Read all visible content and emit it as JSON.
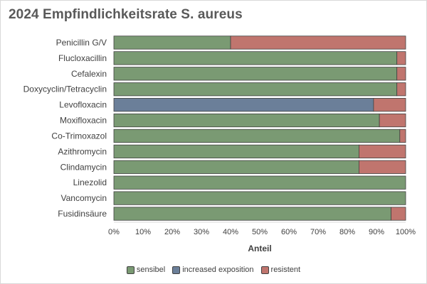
{
  "chart_data": {
    "type": "bar",
    "orientation": "horizontal",
    "stacked": true,
    "title": "2024 Empfindlichkeitsrate S. aureus",
    "xlabel": "Anteil",
    "ylabel": "",
    "xlim": [
      0,
      100
    ],
    "x_ticks": [
      "0%",
      "10%",
      "20%",
      "30%",
      "40%",
      "50%",
      "60%",
      "70%",
      "80%",
      "90%",
      "100%"
    ],
    "grid": false,
    "legend_position": "bottom",
    "categories": [
      "Penicillin G/V",
      "Flucloxacillin",
      "Cefalexin",
      "Doxycyclin/Tetracyclin",
      "Levofloxacin",
      "Moxifloxacin",
      "Co-Trimoxazol",
      "Azithromycin",
      "Clindamycin",
      "Linezolid",
      "Vancomycin",
      "Fusidinsäure"
    ],
    "series": [
      {
        "name": "sensibel",
        "color": "#7a9a73",
        "values": [
          40,
          97,
          97,
          97,
          0,
          91,
          98,
          84,
          84,
          100,
          100,
          95
        ]
      },
      {
        "name": "increased exposition",
        "color": "#6b7f99",
        "values": [
          0,
          0,
          0,
          0,
          89,
          0,
          0,
          0,
          0,
          0,
          0,
          0
        ]
      },
      {
        "name": "resistent",
        "color": "#c0756e",
        "values": [
          60,
          3,
          3,
          3,
          11,
          9,
          2,
          16,
          16,
          0,
          0,
          5
        ]
      }
    ]
  }
}
